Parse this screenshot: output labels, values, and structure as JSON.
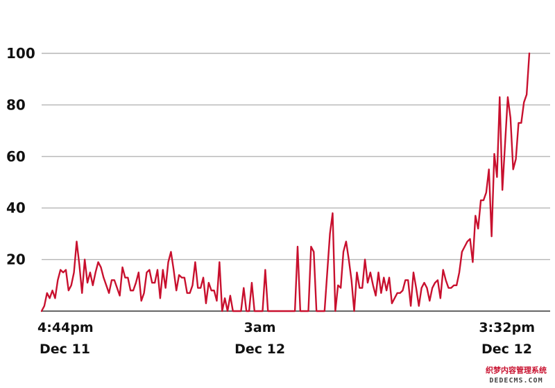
{
  "chart_data": {
    "type": "line",
    "title": "",
    "xlabel": "",
    "ylabel": "",
    "ylim": [
      0,
      100
    ],
    "yticks": [
      20,
      40,
      60,
      80,
      100
    ],
    "grid": true,
    "color": "#c8102e",
    "x_tick_labels": [
      {
        "index": 0,
        "line1": "4:44pm",
        "line2": "Dec 11"
      },
      {
        "index": 81,
        "line1": "3am",
        "line2": "Dec 12"
      },
      {
        "index": 168,
        "line1": "3:32pm",
        "line2": "Dec 12"
      }
    ],
    "values": [
      0,
      2,
      7,
      5,
      8,
      5,
      12,
      16,
      15,
      16,
      8,
      10,
      15,
      27,
      18,
      7,
      20,
      11,
      15,
      10,
      15,
      19,
      17,
      13,
      10,
      7,
      12,
      12,
      9,
      6,
      17,
      13,
      13,
      8,
      8,
      11,
      15,
      4,
      7,
      15,
      16,
      11,
      11,
      16,
      5,
      16,
      9,
      19,
      23,
      16,
      8,
      14,
      13,
      13,
      7,
      7,
      10,
      19,
      9,
      9,
      13,
      3,
      11,
      8,
      8,
      4,
      19,
      0,
      5,
      0,
      6,
      0,
      0,
      0,
      0,
      9,
      0,
      0,
      11,
      0,
      0,
      0,
      0,
      16,
      0,
      0,
      0,
      0,
      0,
      0,
      0,
      0,
      0,
      0,
      0,
      25,
      0,
      0,
      0,
      0,
      25,
      23,
      0,
      0,
      0,
      0,
      15,
      30,
      38,
      0,
      10,
      9,
      23,
      27,
      20,
      12,
      0,
      15,
      9,
      9,
      20,
      11,
      15,
      10,
      6,
      15,
      7,
      13,
      8,
      13,
      3,
      5,
      7,
      7,
      8,
      12,
      12,
      2,
      15,
      9,
      2,
      9,
      11,
      9,
      4,
      9,
      11,
      12,
      5,
      16,
      12,
      9,
      9,
      10,
      10,
      15,
      23,
      25,
      27,
      28,
      19,
      37,
      32,
      43,
      43,
      46,
      55,
      29,
      61,
      52,
      83,
      47,
      65,
      83,
      75,
      55,
      59,
      73,
      73,
      81,
      84,
      100
    ],
    "series": [
      {
        "values": []
      }
    ]
  },
  "watermark": {
    "line1": "织梦内容管理系统",
    "line2": "DEDECMS.COM"
  }
}
